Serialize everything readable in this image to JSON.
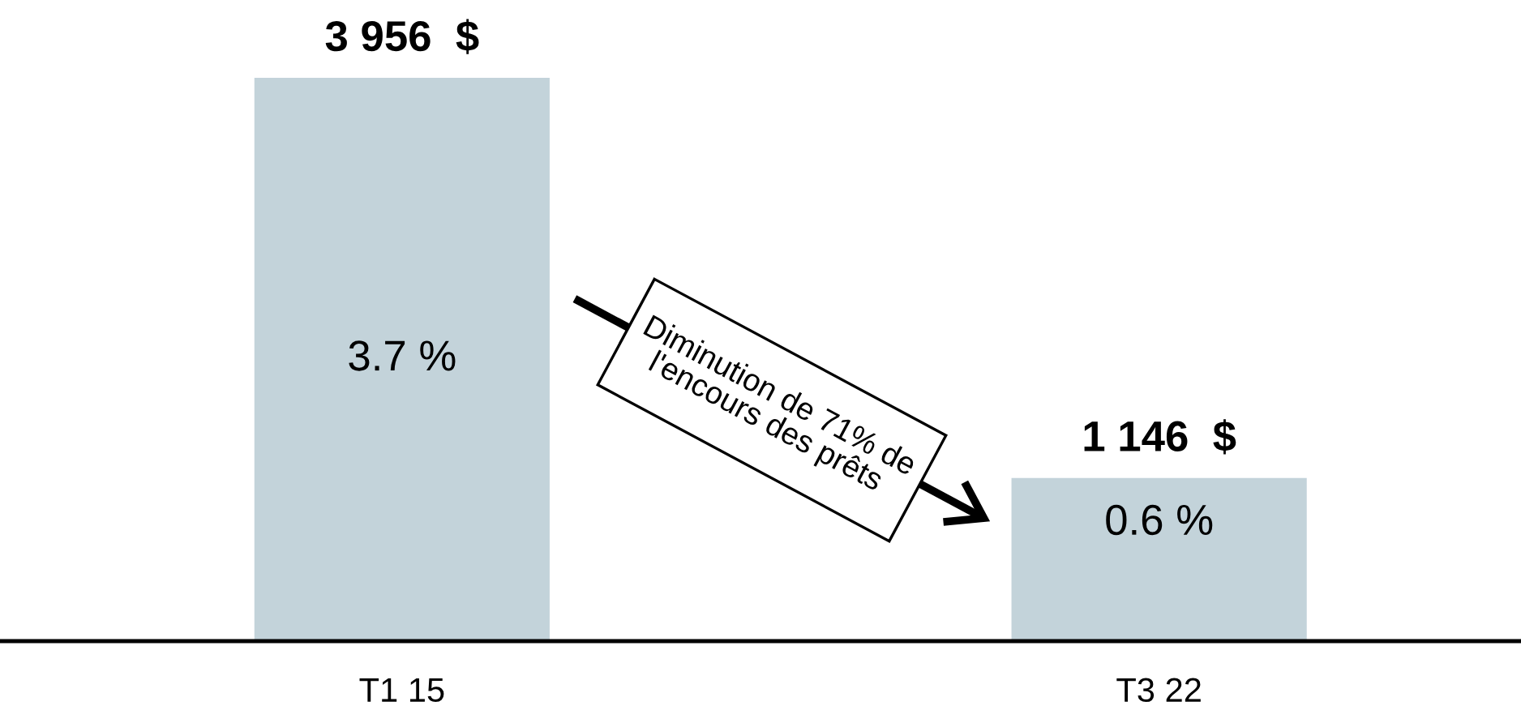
{
  "chart_data": {
    "type": "bar",
    "categories": [
      "T1 15",
      "T3 22"
    ],
    "series": [
      {
        "color": "#c3d3da",
        "values": [
          3956,
          1146
        ],
        "value_labels": [
          "3 956  $",
          "1 146  $"
        ]
      }
    ],
    "annotations": [
      "3.7 %",
      "0.6 %",
      "Diminution de 71% de\nl'encours des prêts"
    ]
  }
}
